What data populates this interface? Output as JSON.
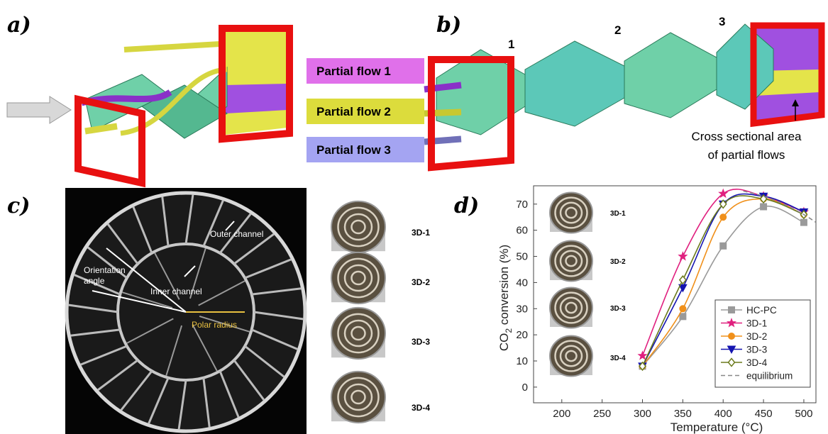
{
  "panel_a": {
    "label": "a)"
  },
  "panel_b": {
    "label": "b)",
    "section_numbers": [
      "1",
      "2",
      "3"
    ],
    "partial_flows": [
      "Partial flow 1",
      "Partial flow 2",
      "Partial flow 3"
    ],
    "annotation": [
      "Cross sectional area",
      "of partial flows"
    ]
  },
  "panel_c": {
    "label": "c)",
    "image_labels": {
      "outer_channel": "Outer channel",
      "inner_channel": "Inner channel",
      "orientation_angle": [
        "Orientation",
        "angle"
      ],
      "polar_radius": "Polar radius"
    },
    "samples": [
      "3D-1",
      "3D-2",
      "3D-3",
      "3D-4"
    ]
  },
  "panel_d": {
    "label": "d)",
    "inset_labels": [
      "3D-1",
      "3D-2",
      "3D-3",
      "3D-4"
    ]
  },
  "chart_data": {
    "type": "line",
    "x_label": "Temperature (°C)",
    "y_label": [
      "CO",
      "2",
      " conversion (%)"
    ],
    "x": [
      300,
      350,
      400,
      450,
      500
    ],
    "xlim": [
      165,
      515
    ],
    "ylim": [
      -6,
      77
    ],
    "xticks": [
      200,
      250,
      300,
      350,
      400,
      450,
      500
    ],
    "yticks": [
      0,
      10,
      20,
      30,
      40,
      50,
      60,
      70
    ],
    "legend": "lower right",
    "series": [
      {
        "name": "HC-PC",
        "color": "#9a9a9a",
        "marker": "square",
        "values": [
          8,
          27,
          54,
          69,
          63
        ]
      },
      {
        "name": "3D-1",
        "color": "#e0207f",
        "marker": "star",
        "values": [
          12,
          50,
          74,
          73,
          67
        ]
      },
      {
        "name": "3D-2",
        "color": "#f0901a",
        "marker": "circle",
        "values": [
          8,
          30,
          65,
          72,
          66
        ]
      },
      {
        "name": "3D-3",
        "color": "#1414b0",
        "marker": "triangle-down",
        "values": [
          8,
          38,
          70,
          73,
          67
        ]
      },
      {
        "name": "3D-4",
        "color": "#6b7a1c",
        "marker": "diamond",
        "values": [
          8,
          41,
          70,
          72,
          66
        ]
      },
      {
        "name": "equilibrium",
        "color": "#888888",
        "line_style": "dashed",
        "x": [
          425,
          450,
          475,
          500,
          515
        ],
        "values": [
          75,
          73,
          70,
          66,
          63
        ]
      }
    ]
  }
}
